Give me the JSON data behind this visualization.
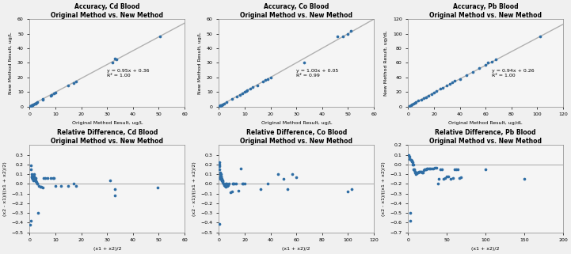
{
  "panels": [
    {
      "title": "Accuracy, Cd Blood\nOriginal Method vs. New Method",
      "xlabel": "Original Method Result, ug/L",
      "ylabel": "New Method Result, ug/L",
      "xlim": [
        0,
        60
      ],
      "ylim": [
        0,
        60
      ],
      "xticks": [
        0,
        10.0,
        20.0,
        30.0,
        40.0,
        50.0,
        60.0
      ],
      "yticks": [
        0,
        10,
        20,
        30,
        40,
        50,
        60
      ],
      "equation": "y = 0.95x + 0.36",
      "r2": "R² = 1.00",
      "eq_x": 30,
      "eq_y": 26,
      "slope": 0.95,
      "intercept": 0.36,
      "scatter_x": [
        0.2,
        0.5,
        0.7,
        0.9,
        1.1,
        1.3,
        2.0,
        2.2,
        2.5,
        3.0,
        5.0,
        5.2,
        8.0,
        8.5,
        9.5,
        10.0,
        15.0,
        17.0,
        18.0,
        32.0,
        33.0,
        33.5,
        50.5
      ],
      "scatter_y": [
        0.2,
        0.5,
        0.7,
        0.9,
        1.0,
        1.2,
        1.9,
        2.1,
        2.4,
        2.9,
        4.8,
        5.0,
        7.6,
        8.1,
        9.0,
        9.5,
        14.3,
        16.2,
        17.1,
        30.4,
        33.0,
        32.2,
        48.1
      ]
    },
    {
      "title": "Accuracy, Co Blood\nOriginal Method vs. New Method",
      "xlabel": "Original Method Result, ug/L",
      "ylabel": "New Method Result, ug/L",
      "xlim": [
        0,
        60
      ],
      "ylim": [
        0,
        60
      ],
      "xticks": [
        0,
        10.0,
        20.0,
        30.0,
        40.0,
        50.0,
        60.0
      ],
      "yticks": [
        0,
        10,
        20,
        30,
        40,
        50,
        60
      ],
      "equation": "y = 1.00x + 0.05",
      "r2": "R² = 0.99",
      "eq_x": 30,
      "eq_y": 26,
      "slope": 1.0,
      "intercept": 0.05,
      "scatter_x": [
        0.2,
        0.4,
        0.6,
        0.8,
        1.0,
        1.5,
        2.0,
        3.0,
        5.0,
        7.0,
        8.0,
        9.0,
        10.0,
        10.5,
        11.0,
        12.0,
        13.0,
        15.0,
        17.0,
        18.0,
        19.0,
        20.0,
        33.0,
        46.0,
        48.0,
        50.0,
        51.0
      ],
      "scatter_y": [
        0.2,
        0.4,
        0.6,
        0.8,
        1.0,
        1.5,
        2.0,
        3.0,
        5.0,
        7.0,
        8.0,
        9.0,
        10.0,
        10.5,
        11.0,
        12.5,
        13.5,
        14.5,
        17.0,
        18.0,
        19.0,
        20.0,
        30.5,
        48.0,
        48.0,
        50.0,
        52.0
      ]
    },
    {
      "title": "Accuracy, Pb Blood\nOriginal Method vs. New Method",
      "xlabel": "Original Method Result, ug/dL",
      "ylabel": "New Method Result, ug/dL",
      "xlim": [
        0,
        120
      ],
      "ylim": [
        0,
        120
      ],
      "xticks": [
        0,
        20.0,
        40.0,
        60.0,
        80.0,
        100.0,
        120.0
      ],
      "yticks": [
        0,
        20,
        40,
        60,
        80,
        100,
        120
      ],
      "equation": "y = 0.94x + 0.26",
      "r2": "R² = 1.00",
      "eq_x": 65,
      "eq_y": 52,
      "slope": 0.94,
      "intercept": 0.26,
      "scatter_x": [
        1,
        2,
        3,
        4,
        5,
        6,
        8,
        10,
        12,
        14,
        16,
        18,
        20,
        22,
        25,
        27,
        30,
        32,
        34,
        36,
        40,
        45,
        50,
        55,
        60,
        62,
        65,
        68,
        102
      ],
      "scatter_y": [
        1,
        2,
        3,
        4,
        5,
        6,
        8,
        9,
        11,
        13,
        15,
        17,
        19,
        21,
        24,
        26,
        29,
        31,
        33,
        35,
        38,
        43,
        47,
        53,
        57,
        60,
        62,
        65,
        96
      ]
    }
  ],
  "bottom_panels": [
    {
      "title": "Relative Difference, Cd Blood\nOriginal Method vs. New Method",
      "xlabel": "(x1 + x2)/2",
      "ylabel": "(x2 - x1)/((x1 + x2)/2)",
      "xlim": [
        0,
        60
      ],
      "ylim": [
        -0.5,
        0.4
      ],
      "xticks": [
        0,
        10,
        20,
        30,
        40,
        50,
        60
      ],
      "yticks": [
        -0.5,
        -0.4,
        -0.3,
        -0.2,
        -0.1,
        0.0,
        0.1,
        0.2,
        0.3
      ],
      "scatter_x": [
        0.3,
        0.4,
        0.5,
        0.6,
        0.7,
        0.8,
        0.9,
        1.0,
        1.1,
        1.2,
        1.3,
        1.4,
        1.5,
        1.6,
        1.7,
        1.8,
        1.9,
        2.0,
        2.1,
        2.2,
        2.3,
        2.4,
        2.5,
        2.8,
        3.0,
        3.2,
        3.5,
        4.0,
        4.5,
        5.0,
        5.5,
        6.0,
        7.0,
        8.0,
        9.0,
        9.5,
        10.0,
        12.0,
        15.0,
        17.0,
        18.0,
        31.0,
        33.0,
        33.0,
        49.5
      ],
      "scatter_y": [
        -0.42,
        -0.38,
        0.19,
        0.15,
        0.1,
        0.08,
        0.07,
        0.06,
        0.05,
        0.05,
        0.04,
        0.08,
        0.07,
        0.06,
        0.1,
        0.08,
        0.05,
        0.04,
        0.05,
        0.06,
        0.04,
        0.03,
        0.02,
        0.0,
        0.0,
        -0.3,
        -0.02,
        -0.03,
        -0.03,
        -0.04,
        0.06,
        0.06,
        0.06,
        0.06,
        0.06,
        0.06,
        -0.02,
        -0.02,
        -0.02,
        0.0,
        -0.02,
        0.04,
        -0.12,
        -0.05,
        -0.04
      ]
    },
    {
      "title": "Relative Difference, Co Blood\nOriginal Method vs. New Method",
      "xlabel": "(x1 + x2)/2",
      "ylabel": "(x2 - x1)/((x1 + x2)/2)",
      "xlim": [
        0,
        120
      ],
      "ylim": [
        -0.5,
        0.4
      ],
      "xticks": [
        0,
        20,
        40,
        60,
        80,
        100,
        120
      ],
      "yticks": [
        -0.5,
        -0.4,
        -0.3,
        -0.2,
        -0.1,
        0.0,
        0.1,
        0.2,
        0.3
      ],
      "scatter_x": [
        0.2,
        0.3,
        0.4,
        0.5,
        0.6,
        0.7,
        0.8,
        0.9,
        1.0,
        1.1,
        1.2,
        1.3,
        1.4,
        1.5,
        1.6,
        1.7,
        1.8,
        1.9,
        2.0,
        2.2,
        2.5,
        2.8,
        3.0,
        3.5,
        4.0,
        4.5,
        5.0,
        5.5,
        6.0,
        6.5,
        7.0,
        8.0,
        9.0,
        10.0,
        10.5,
        11.0,
        12.0,
        13.0,
        15.0,
        17.0,
        18.0,
        19.0,
        20.0,
        32.0,
        38.0,
        46.0,
        50.0,
        53.0,
        57.0,
        60.0,
        100.0,
        103.0
      ],
      "scatter_y": [
        -0.41,
        0.22,
        0.2,
        0.18,
        0.15,
        0.12,
        0.1,
        0.08,
        0.07,
        0.06,
        0.05,
        0.07,
        0.08,
        0.06,
        0.1,
        0.08,
        0.06,
        0.04,
        0.05,
        0.04,
        0.04,
        0.03,
        0.02,
        0.0,
        -0.01,
        -0.02,
        -0.03,
        0.0,
        0.0,
        -0.02,
        -0.01,
        0.0,
        -0.09,
        -0.08,
        0.0,
        0.0,
        0.0,
        0.0,
        -0.07,
        0.16,
        0.0,
        0.0,
        0.0,
        -0.05,
        0.0,
        0.1,
        0.05,
        -0.05,
        0.1,
        0.07,
        -0.08,
        -0.05
      ]
    },
    {
      "title": "Relative Difference, Pb Blood\nOriginal Method vs. New Method",
      "xlabel": "(x1 + x2)/2",
      "ylabel": "(x2 - x1)/((x1 + x2)/2)",
      "xlim": [
        0,
        200
      ],
      "ylim": [
        -0.7,
        0.2
      ],
      "xticks": [
        0,
        50,
        100,
        150,
        200
      ],
      "yticks": [
        -0.7,
        -0.6,
        -0.5,
        -0.4,
        -0.3,
        -0.2,
        -0.1,
        0.0,
        0.1,
        0.2
      ],
      "scatter_x": [
        1,
        1.5,
        2,
        2.5,
        3,
        3.5,
        4,
        4.5,
        5,
        5.5,
        6,
        6.5,
        7,
        7.5,
        8,
        8.5,
        9,
        9.5,
        10,
        11,
        12,
        13,
        14,
        15,
        16,
        17,
        18,
        19,
        20,
        21,
        22,
        23,
        24,
        25,
        27,
        28,
        30,
        32,
        34,
        36,
        38,
        40,
        42,
        44,
        46,
        48,
        50,
        52,
        55,
        58,
        60,
        62,
        64,
        66,
        68,
        100,
        150
      ],
      "scatter_y": [
        0.1,
        0.08,
        0.06,
        -0.58,
        -0.5,
        0.05,
        0.05,
        0.04,
        0.03,
        0.02,
        0.0,
        0.0,
        -0.05,
        -0.05,
        -0.06,
        -0.07,
        -0.08,
        -0.08,
        -0.1,
        -0.09,
        -0.08,
        -0.08,
        -0.07,
        -0.07,
        -0.07,
        -0.07,
        -0.08,
        -0.08,
        -0.06,
        -0.05,
        -0.05,
        -0.05,
        -0.04,
        -0.04,
        -0.04,
        -0.04,
        -0.04,
        -0.04,
        -0.03,
        -0.03,
        -0.2,
        -0.15,
        -0.05,
        -0.05,
        -0.15,
        -0.14,
        -0.12,
        -0.12,
        -0.15,
        -0.14,
        -0.05,
        -0.05,
        -0.05,
        -0.14,
        -0.13,
        -0.05,
        -0.15
      ]
    }
  ],
  "dot_color": "#2E6DA4",
  "line_color": "#B0B0B0",
  "background_color": "#F5F5F5"
}
